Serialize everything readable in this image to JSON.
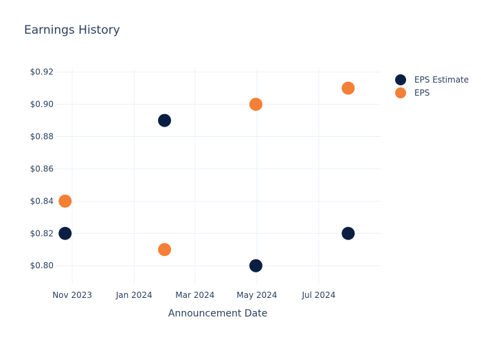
{
  "chart_data": {
    "type": "scatter",
    "title": "Earnings History",
    "xlabel": "Announcement Date",
    "ylabel": "",
    "x_ticks": [
      "2023-11-01",
      "2024-01-01",
      "2024-03-01",
      "2024-05-01",
      "2024-07-01"
    ],
    "x_tick_labels": [
      "Nov 2023",
      "Jan 2024",
      "Mar 2024",
      "May 2024",
      "Jul 2024"
    ],
    "xlim": [
      "2023-10-15",
      "2024-08-31"
    ],
    "y_ticks": [
      0.8,
      0.82,
      0.84,
      0.86,
      0.88,
      0.9,
      0.92
    ],
    "y_tick_labels": [
      "$0.80",
      "$0.82",
      "$0.84",
      "$0.86",
      "$0.88",
      "$0.90",
      "$0.92"
    ],
    "ylim": [
      0.789,
      0.922
    ],
    "grid": true,
    "legend_position": "top-right",
    "series": [
      {
        "name": "EPS Estimate",
        "color": "#0b1f42",
        "x": [
          "2023-10-25",
          "2024-01-31",
          "2024-04-30",
          "2024-07-30"
        ],
        "y": [
          0.82,
          0.89,
          0.8,
          0.82
        ]
      },
      {
        "name": "EPS",
        "color": "#f47f36",
        "x": [
          "2023-10-25",
          "2024-01-31",
          "2024-04-30",
          "2024-07-30"
        ],
        "y": [
          0.84,
          0.81,
          0.9,
          0.91
        ]
      }
    ]
  }
}
